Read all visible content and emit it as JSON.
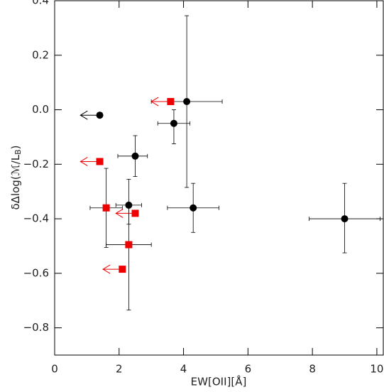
{
  "chart_data": {
    "type": "scatter",
    "xlabel": "EW[OII][Å]",
    "ylabel": {
      "main": "δΔlog(ℳ/L",
      "sub": "B",
      "end": ")"
    },
    "xlim": [
      0,
      10.2
    ],
    "ylim": [
      -0.9,
      0.4
    ],
    "xticks": [
      0,
      2,
      4,
      6,
      8,
      10
    ],
    "yticks": [
      {
        "value": -0.8,
        "label": "−0.8"
      },
      {
        "value": -0.6,
        "label": "−0.6"
      },
      {
        "value": -0.4,
        "label": "−0.4"
      },
      {
        "value": -0.2,
        "label": "−0.2"
      },
      {
        "value": 0,
        "label": "0.0"
      },
      {
        "value": 0.2,
        "label": "0.2"
      },
      {
        "value": 0.4,
        "label": "0.4"
      }
    ],
    "series": [
      {
        "marker": "circle",
        "color": "#000000",
        "x": [
          1.4,
          2.5,
          2.3,
          3.7,
          4.1,
          4.3,
          9.0
        ],
        "values": [
          -0.02,
          -0.17,
          -0.35,
          -0.05,
          0.03,
          -0.36,
          -0.4
        ],
        "x_low": [
          null,
          1.96,
          1.9,
          3.2,
          3.0,
          3.5,
          7.9
        ],
        "x_high": [
          null,
          2.88,
          2.7,
          4.2,
          5.2,
          5.1,
          10.1
        ],
        "y_low": [
          null,
          -0.245,
          -0.42,
          -0.125,
          -0.285,
          -0.45,
          -0.525
        ],
        "y_high": [
          null,
          -0.095,
          -0.255,
          0.0,
          0.345,
          -0.27,
          -0.27
        ],
        "arrow_to": [
          0.8,
          null,
          null,
          null,
          null,
          null,
          null
        ]
      },
      {
        "marker": "square",
        "color": "#ee0000",
        "x": [
          3.6,
          1.4,
          1.6,
          2.5,
          2.3,
          2.1
        ],
        "values": [
          0.03,
          -0.19,
          -0.36,
          -0.38,
          -0.495,
          -0.585
        ],
        "x_low": [
          null,
          null,
          1.1,
          null,
          1.6,
          null
        ],
        "x_high": [
          null,
          null,
          2.1,
          null,
          3.0,
          null
        ],
        "y_low": [
          null,
          null,
          -0.505,
          null,
          -0.735,
          null
        ],
        "y_high": [
          null,
          null,
          -0.215,
          null,
          -0.36,
          null
        ],
        "arrow_to": [
          3.0,
          0.8,
          null,
          1.9,
          null,
          1.5
        ]
      }
    ]
  }
}
